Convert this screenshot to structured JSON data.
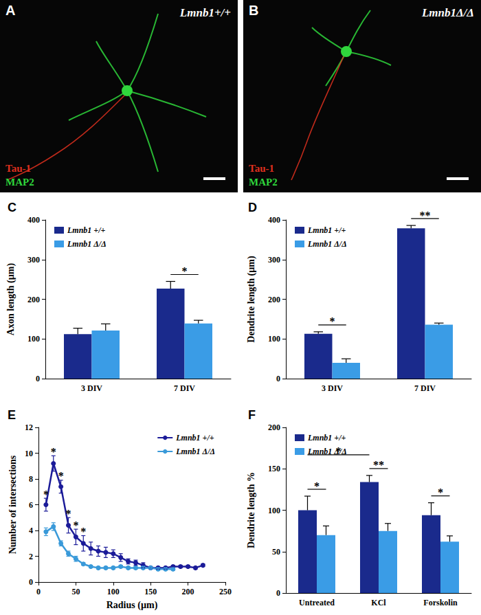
{
  "images": [
    {
      "title": "A",
      "genotype": "Lmnb1+/+",
      "stains": [
        {
          "name": "Tau-1",
          "color": "#e0301e"
        },
        {
          "name": "MAP2",
          "color": "#2fd63c"
        }
      ]
    },
    {
      "title": "B",
      "genotype": "Lmnb1Δ/Δ",
      "stains": [
        {
          "name": "Tau-1",
          "color": "#e0301e"
        },
        {
          "name": "MAP2",
          "color": "#2fd63c"
        }
      ]
    }
  ],
  "chart_data": [
    {
      "title": "C",
      "type": "bar",
      "categories": [
        "3 DIV",
        "7 DIV"
      ],
      "y_label": "Axon length (µm)",
      "ylim": [
        0,
        400
      ],
      "yticks": [
        0,
        100,
        200,
        300,
        400
      ],
      "grid": false,
      "legend": "upper left",
      "series": [
        {
          "name": "Lmnb1 +/+",
          "color": "#1a2a8c",
          "values": [
            112,
            227
          ],
          "errors": [
            15,
            18
          ]
        },
        {
          "name": "Lmnb1 Δ/Δ",
          "color": "#3a9ce6",
          "values": [
            121,
            139
          ],
          "errors": [
            17,
            8
          ]
        }
      ],
      "significance": [
        {
          "categories": [
            "7 DIV"
          ],
          "label": "*"
        }
      ]
    },
    {
      "title": "D",
      "type": "bar",
      "categories": [
        "3 DIV",
        "7 DIV"
      ],
      "y_label": "Dendrite length (µm)",
      "ylim": [
        0,
        400
      ],
      "yticks": [
        0,
        100,
        200,
        300,
        400
      ],
      "grid": false,
      "legend": "upper left",
      "series": [
        {
          "name": "Lmnb1 +/+",
          "color": "#1a2a8c",
          "values": [
            113,
            379
          ],
          "errors": [
            5,
            7
          ]
        },
        {
          "name": "Lmnb1 Δ/Δ",
          "color": "#3a9ce6",
          "values": [
            40,
            136
          ],
          "errors": [
            10,
            4
          ]
        }
      ],
      "significance": [
        {
          "categories": [
            "3 DIV"
          ],
          "label": "*"
        },
        {
          "categories": [
            "7 DIV"
          ],
          "label": "**"
        }
      ]
    },
    {
      "title": "E",
      "type": "line",
      "x_label": "Radius (µm)",
      "y_label": "Number of intersections",
      "xlim": [
        0,
        250
      ],
      "xticks": [
        0,
        50,
        100,
        150,
        200,
        250
      ],
      "ylim": [
        0,
        12
      ],
      "yticks": [
        0,
        2,
        4,
        6,
        8,
        10,
        12
      ],
      "grid": false,
      "legend": "upper right",
      "series": [
        {
          "name": "Lmnb1 +/+",
          "color": "#1c1c99",
          "marker": "circle",
          "line_style": "solid",
          "x": [
            10,
            20,
            30,
            40,
            50,
            60,
            70,
            80,
            90,
            100,
            110,
            120,
            130,
            140,
            150,
            160,
            170,
            180,
            190,
            200,
            210,
            220
          ],
          "values": [
            6.0,
            9.2,
            7.4,
            4.4,
            3.5,
            3.0,
            2.6,
            2.4,
            2.3,
            2.2,
            1.9,
            1.6,
            1.5,
            1.3,
            1.1,
            1.1,
            1.1,
            1.2,
            1.2,
            1.2,
            1.1,
            1.3
          ],
          "errors": [
            0.5,
            0.6,
            0.5,
            0.6,
            0.6,
            0.6,
            0.5,
            0.4,
            0.4,
            0.3,
            0.3,
            0.2,
            0.2,
            0.2,
            0.1,
            0.1,
            0.1,
            0.1,
            0.1,
            0.1,
            0.1,
            0.1
          ]
        },
        {
          "name": "Lmnb1 Δ/Δ",
          "color": "#3a9ad9",
          "marker": "circle",
          "line_style": "solid",
          "x": [
            10,
            20,
            30,
            40,
            50,
            60,
            70,
            80,
            90,
            100,
            110,
            120,
            130,
            140,
            150,
            160,
            170,
            180
          ],
          "values": [
            3.9,
            4.3,
            3.0,
            2.2,
            1.8,
            1.4,
            1.2,
            1.1,
            1.1,
            1.1,
            1.2,
            1.1,
            1.1,
            1.1,
            1.1,
            1.0,
            1.0,
            1.0
          ],
          "errors": [
            0.3,
            0.3,
            0.2,
            0.2,
            0.2,
            0.1,
            0.1,
            0.1,
            0.1,
            0.1,
            0.1,
            0.1,
            0.1,
            0.1,
            0.1,
            0.1,
            0.1,
            0.1
          ]
        }
      ],
      "significance": [
        {
          "series": "Lmnb1 +/+",
          "x": [
            10,
            20,
            30,
            40,
            50,
            60
          ],
          "label": "*"
        }
      ]
    },
    {
      "title": "F",
      "type": "bar",
      "categories": [
        "Untreated",
        "KCl",
        "Forskolin"
      ],
      "y_label": "Dendrite length %",
      "ylim": [
        0,
        200
      ],
      "yticks": [
        0,
        50,
        100,
        150,
        200
      ],
      "grid": false,
      "legend": "upper left",
      "series": [
        {
          "name": "Lmnb1 +/+",
          "color": "#1a2a8c",
          "values": [
            100,
            134,
            94
          ],
          "errors": [
            17,
            8,
            15
          ]
        },
        {
          "name": "Lmnb1 Δ/Δ",
          "color": "#3a9ce6",
          "values": [
            70,
            75,
            62
          ],
          "errors": [
            11,
            9,
            7
          ]
        }
      ],
      "significance": [
        {
          "categories": [
            "Untreated"
          ],
          "label": "*"
        },
        {
          "categories": [
            "KCl"
          ],
          "label": "**"
        },
        {
          "categories": [
            "Forskolin"
          ],
          "label": "*"
        },
        {
          "categories": [
            "Untreated",
            "KCl"
          ],
          "series": "Lmnb1 +/+",
          "label": "*"
        }
      ]
    }
  ]
}
